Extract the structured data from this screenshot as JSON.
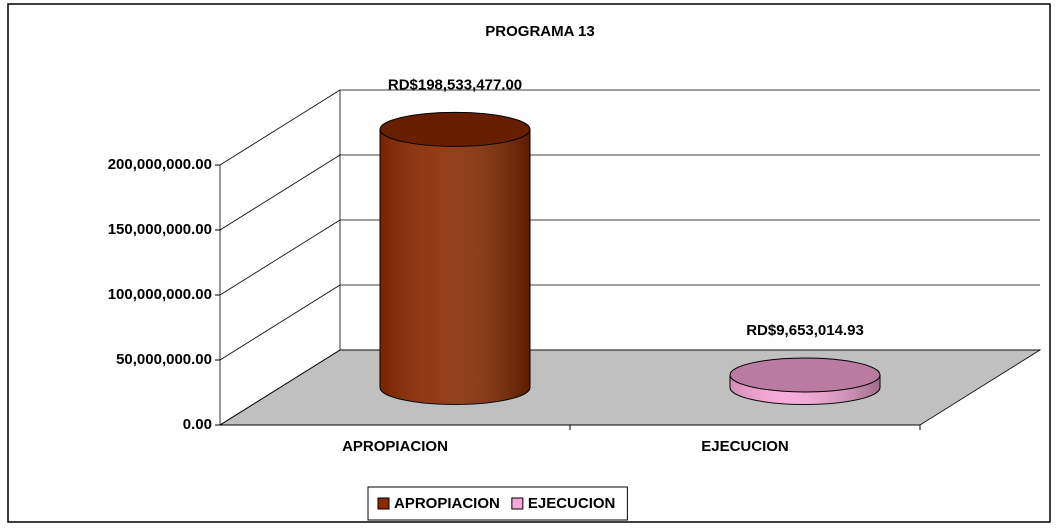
{
  "chart_data": {
    "type": "bar",
    "subtype": "3d-cylinder",
    "title": "PROGRAMA 13",
    "categories": [
      "APROPIACION",
      "EJECUCION"
    ],
    "series": [
      {
        "name": "APROPIACION",
        "color": "#8b2a00",
        "values": [
          198533477.0,
          null
        ],
        "value_labels": [
          "RD$198,533,477.00",
          null
        ]
      },
      {
        "name": "EJECUCION",
        "color": "#f7a6d6",
        "values": [
          null,
          9653014.93
        ],
        "value_labels": [
          null,
          "RD$9,653,014.93"
        ]
      }
    ],
    "ylim": [
      0,
      200000000
    ],
    "yticks": [
      {
        "value": 0,
        "label": "0.00"
      },
      {
        "value": 50000000,
        "label": "50,000,000.00"
      },
      {
        "value": 100000000,
        "label": "100,000,000.00"
      },
      {
        "value": 150000000,
        "label": "150,000,000.00"
      },
      {
        "value": 200000000,
        "label": "200,000,000.00"
      }
    ],
    "grid": true,
    "legend": "bottom"
  }
}
